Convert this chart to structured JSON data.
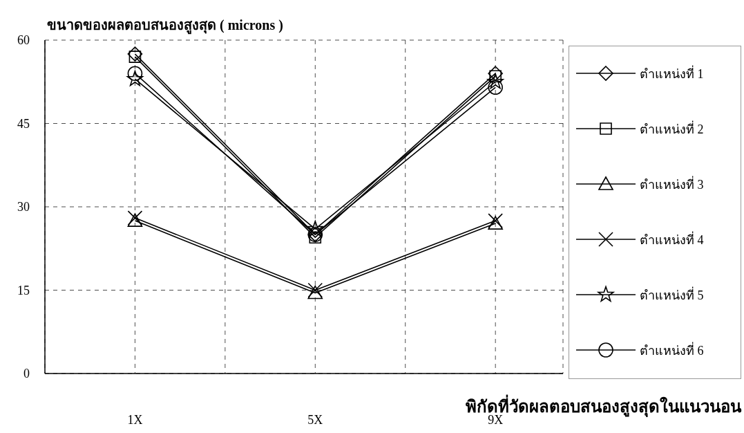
{
  "chart_data": {
    "type": "line",
    "title": "ขนาดของผลตอบสนองสูงสุด ( microns )",
    "xlabel": "พิกัดที่วัดผลตอบสนองสูงสุดในแนวนอน",
    "x": [
      1,
      5,
      9
    ],
    "xlim": [
      -1,
      10.5
    ],
    "xticks": [
      {
        "value": 1,
        "label": "1X"
      },
      {
        "value": 3,
        "label": null
      },
      {
        "value": 5,
        "label": "5X"
      },
      {
        "value": 7,
        "label": null
      },
      {
        "value": 9,
        "label": "9X"
      }
    ],
    "ylim": [
      0,
      60
    ],
    "yticks": [
      0,
      15,
      30,
      45,
      60
    ],
    "grid": true,
    "legend": "right",
    "line_style": "solid",
    "series": [
      {
        "name": "ตำแหน่งที่ 1",
        "color": "#000000",
        "marker": "diamond",
        "values": [
          57.5,
          25,
          54
        ]
      },
      {
        "name": "ตำแหน่งที่ 2",
        "color": "#000000",
        "marker": "square",
        "values": [
          57,
          24.5,
          53.5
        ]
      },
      {
        "name": "ตำแหน่งที่ 3",
        "color": "#000000",
        "marker": "triangle",
        "values": [
          27.5,
          14.5,
          27
        ]
      },
      {
        "name": "ตำแหน่งที่ 4",
        "color": "#000000",
        "marker": "cross",
        "values": [
          28,
          15,
          27.5
        ]
      },
      {
        "name": "ตำแหน่งที่ 5",
        "color": "#000000",
        "marker": "star",
        "values": [
          53,
          26,
          52.5
        ]
      },
      {
        "name": "ตำแหน่งที่ 6",
        "color": "#000000",
        "marker": "circle",
        "values": [
          54,
          25,
          51.5
        ]
      }
    ]
  }
}
